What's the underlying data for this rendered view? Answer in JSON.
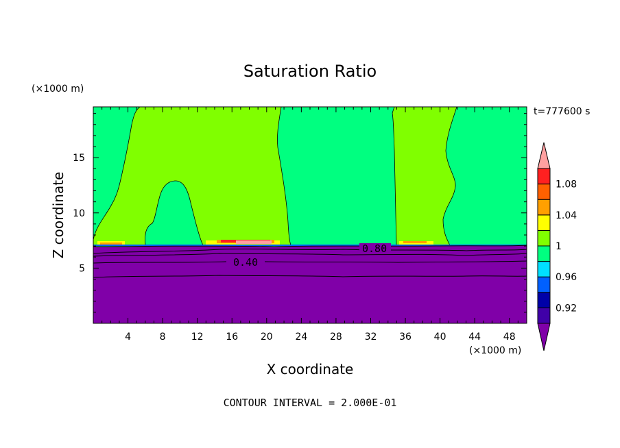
{
  "chart_data": {
    "type": "heatmap",
    "title": "Saturation Ratio",
    "xlabel": "X coordinate",
    "ylabel": "Z coordinate",
    "x_unit": "(×1000 m)",
    "y_unit": "(×1000 m)",
    "time_label": "t=777600 s",
    "footer": "CONTOUR INTERVAL = 2.000E-01",
    "xlim": [
      0,
      50
    ],
    "ylim": [
      0,
      19.6
    ],
    "x_ticks": [
      4,
      8,
      12,
      16,
      20,
      24,
      28,
      32,
      36,
      40,
      44,
      48
    ],
    "y_ticks": [
      5,
      10,
      15
    ],
    "contour_labels": [
      {
        "text": "0.40",
        "x": 17.8,
        "y": 5.8
      },
      {
        "text": "0.80",
        "x": 32.0,
        "y": 6.9
      }
    ],
    "dry_layer_top": 7.2,
    "moist_columns_1.00_to_1.02": [
      {
        "x_from": 0,
        "x_to": 22.5
      },
      {
        "x_from": 35.0,
        "x_to": 41.5
      }
    ],
    "colorbar": {
      "levels": [
        0.9,
        0.92,
        0.94,
        0.96,
        0.98,
        1.0,
        1.02,
        1.04,
        1.06,
        1.08,
        1.1
      ],
      "tick_labels": [
        "0.92",
        "0.96",
        "1",
        "1.04",
        "1.08"
      ],
      "colors": [
        "#8000a8",
        "#4000a8",
        "#0000a8",
        "#0060ff",
        "#00e0ff",
        "#00ff80",
        "#80ff00",
        "#ffff00",
        "#ffa000",
        "#ff6000",
        "#ff2020",
        "#ffa0a0"
      ]
    }
  }
}
